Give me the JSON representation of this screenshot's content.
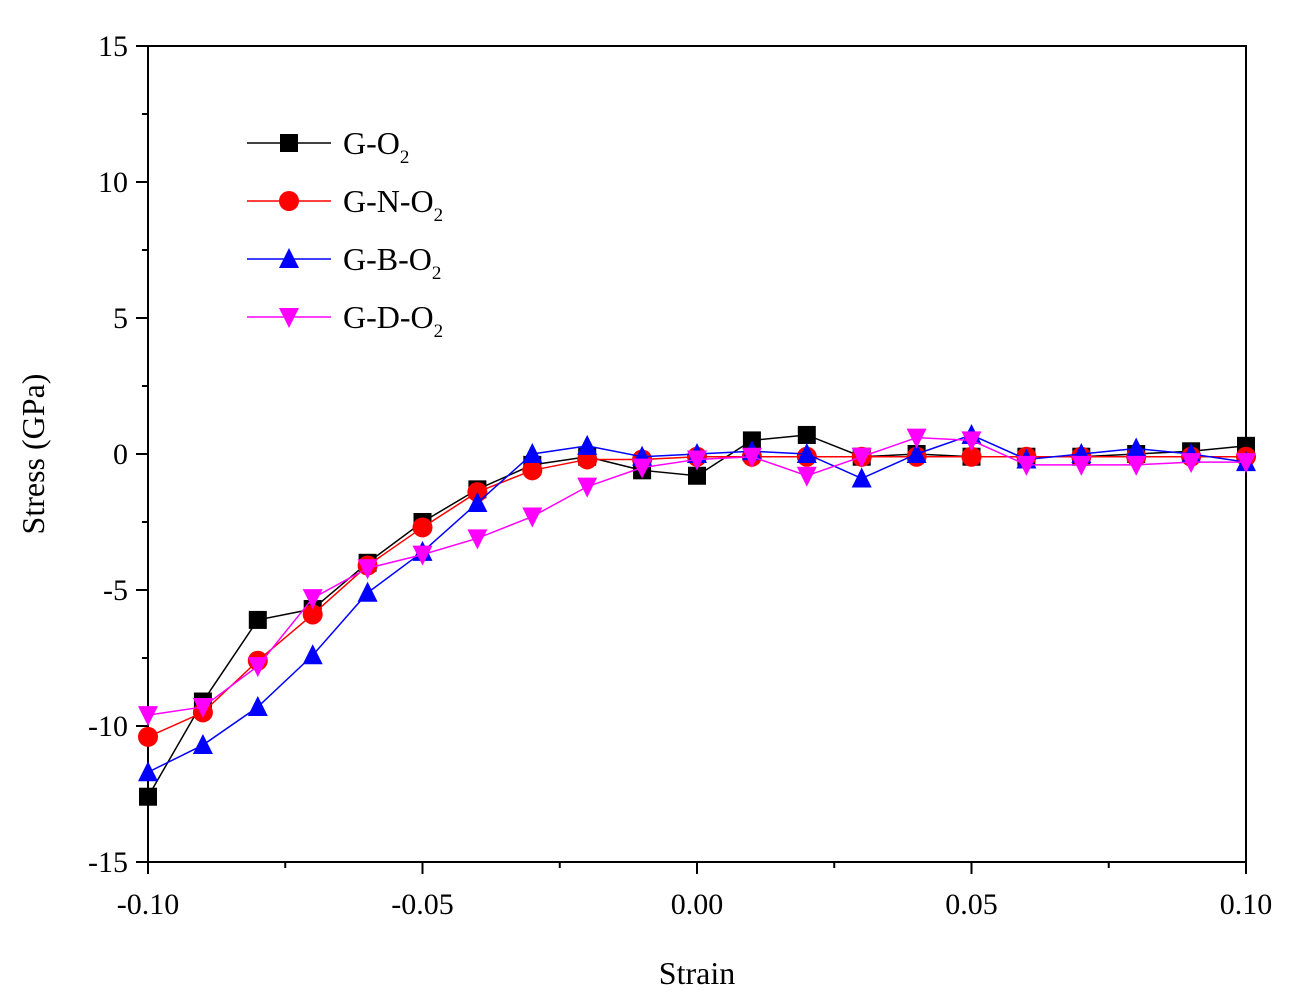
{
  "chart_data": {
    "type": "line",
    "title": "",
    "xlabel": "Strain",
    "ylabel": "Stress (GPa)",
    "xlim": [
      -0.1,
      0.1
    ],
    "ylim": [
      -15,
      15
    ],
    "x_ticks": [
      -0.1,
      -0.05,
      0.0,
      0.05,
      0.1
    ],
    "x_tick_labels": [
      "-0.10",
      "-0.05",
      "0.00",
      "0.05",
      "0.10"
    ],
    "y_ticks": [
      -15,
      -10,
      -5,
      0,
      5,
      10,
      15
    ],
    "y_tick_labels": [
      "-15",
      "-10",
      "-5",
      "0",
      "5",
      "10",
      "15"
    ],
    "grid": false,
    "legend_position": "top-left",
    "x": [
      -0.1,
      -0.09,
      -0.08,
      -0.07,
      -0.06,
      -0.05,
      -0.04,
      -0.03,
      -0.02,
      -0.01,
      0.0,
      0.01,
      0.02,
      0.03,
      0.04,
      0.05,
      0.06,
      0.07,
      0.08,
      0.09,
      0.1
    ],
    "series": [
      {
        "name": "G-O2",
        "label_main": "G-O",
        "label_sub": "2",
        "color": "#000000",
        "marker": "square",
        "values": [
          -12.6,
          -9.1,
          -6.1,
          -5.7,
          -4.0,
          -2.5,
          -1.3,
          -0.4,
          -0.1,
          -0.6,
          -0.8,
          0.5,
          0.7,
          -0.1,
          0.0,
          -0.1,
          -0.1,
          -0.1,
          0.0,
          0.1,
          0.3
        ]
      },
      {
        "name": "G-N-O2",
        "label_main": "G-N-O",
        "label_sub": "2",
        "color": "#ff0000",
        "marker": "circle",
        "values": [
          -10.4,
          -9.5,
          -7.6,
          -5.9,
          -4.1,
          -2.7,
          -1.4,
          -0.6,
          -0.2,
          -0.2,
          -0.1,
          -0.1,
          -0.1,
          -0.1,
          -0.1,
          -0.1,
          -0.1,
          -0.1,
          -0.1,
          -0.1,
          -0.1
        ]
      },
      {
        "name": "G-B-O2",
        "label_main": "G-B-O",
        "label_sub": "2",
        "color": "#0000ff",
        "marker": "triangle-up",
        "values": [
          -11.7,
          -10.7,
          -9.3,
          -7.4,
          -5.1,
          -3.6,
          -1.8,
          0.0,
          0.3,
          -0.1,
          0.0,
          0.1,
          0.0,
          -0.9,
          0.0,
          0.7,
          -0.2,
          0.0,
          0.2,
          0.0,
          -0.3
        ]
      },
      {
        "name": "G-D-O2",
        "label_main": "G-D-O",
        "label_sub": "2",
        "color": "#ff00ff",
        "marker": "triangle-down",
        "values": [
          -9.6,
          -9.3,
          -7.8,
          -5.3,
          -4.2,
          -3.7,
          -3.1,
          -2.3,
          -1.2,
          -0.5,
          -0.2,
          -0.1,
          -0.8,
          -0.1,
          0.6,
          0.5,
          -0.4,
          -0.4,
          -0.4,
          -0.3,
          -0.3
        ]
      }
    ]
  }
}
